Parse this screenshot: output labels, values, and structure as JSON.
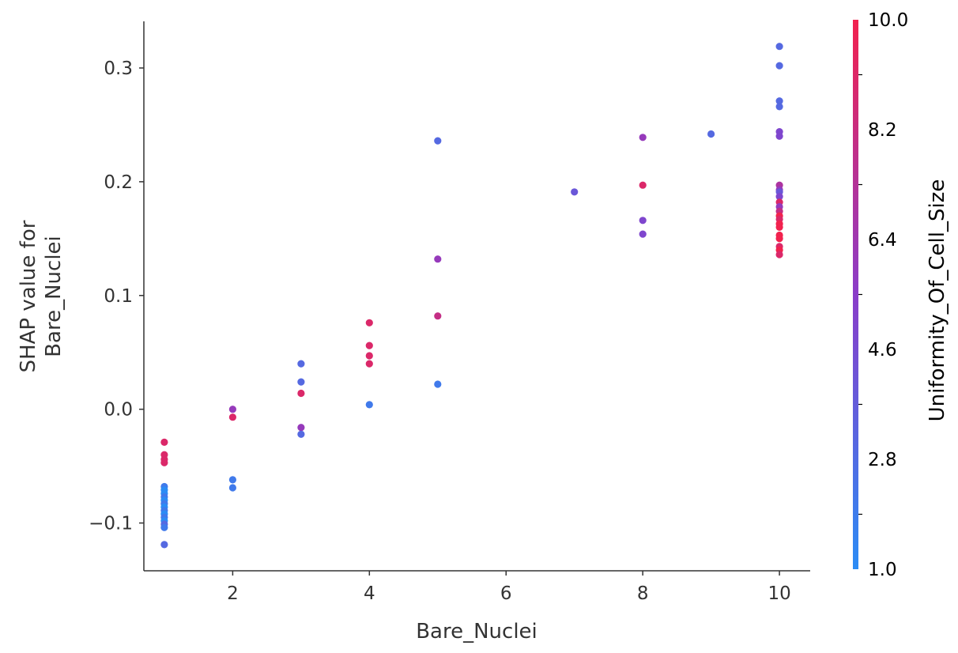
{
  "chart_data": {
    "type": "scatter",
    "xlabel": "Bare_Nuclei",
    "ylabel_lines": [
      "SHAP value for",
      "Bare_Nuclei"
    ],
    "xlim": [
      0.7,
      10.45
    ],
    "ylim": [
      -0.142,
      0.341
    ],
    "xticks": [
      2,
      4,
      6,
      8,
      10
    ],
    "xtick_labels": [
      "2",
      "4",
      "6",
      "8",
      "10"
    ],
    "yticks": [
      -0.1,
      0.0,
      0.1,
      0.2,
      0.3
    ],
    "ytick_labels": [
      "−0.1",
      "0.0",
      "0.1",
      "0.2",
      "0.3"
    ],
    "colorbar": {
      "label": "Uniformity_Of_Cell_Size",
      "min": 1.0,
      "max": 10.0,
      "ticks": [
        1.0,
        2.8,
        4.6,
        6.4,
        8.2,
        10.0
      ],
      "tick_labels": [
        "1.0",
        "2.8",
        "4.6",
        "6.4",
        "8.2",
        "10.0"
      ],
      "color_low": "#2b8cf5",
      "color_mid": "#8a3dc9",
      "color_high": "#f2224e"
    },
    "points": [
      {
        "x": 1,
        "y": -0.029,
        "c": 9
      },
      {
        "x": 1,
        "y": -0.04,
        "c": 9
      },
      {
        "x": 1,
        "y": -0.044,
        "c": 9
      },
      {
        "x": 1,
        "y": -0.047,
        "c": 9
      },
      {
        "x": 1,
        "y": -0.068,
        "c": 2
      },
      {
        "x": 1,
        "y": -0.071,
        "c": 1
      },
      {
        "x": 1,
        "y": -0.074,
        "c": 1
      },
      {
        "x": 1,
        "y": -0.077,
        "c": 2
      },
      {
        "x": 1,
        "y": -0.08,
        "c": 1
      },
      {
        "x": 1,
        "y": -0.083,
        "c": 2
      },
      {
        "x": 1,
        "y": -0.086,
        "c": 1
      },
      {
        "x": 1,
        "y": -0.089,
        "c": 2
      },
      {
        "x": 1,
        "y": -0.092,
        "c": 1
      },
      {
        "x": 1,
        "y": -0.095,
        "c": 2
      },
      {
        "x": 1,
        "y": -0.098,
        "c": 1
      },
      {
        "x": 1,
        "y": -0.101,
        "c": 3
      },
      {
        "x": 1,
        "y": -0.104,
        "c": 2
      },
      {
        "x": 1,
        "y": -0.119,
        "c": 3
      },
      {
        "x": 2,
        "y": 0.0,
        "c": 6
      },
      {
        "x": 2,
        "y": -0.007,
        "c": 9
      },
      {
        "x": 2,
        "y": -0.062,
        "c": 2
      },
      {
        "x": 2,
        "y": -0.069,
        "c": 2
      },
      {
        "x": 3,
        "y": 0.04,
        "c": 3
      },
      {
        "x": 3,
        "y": 0.024,
        "c": 3
      },
      {
        "x": 3,
        "y": 0.014,
        "c": 9
      },
      {
        "x": 3,
        "y": -0.016,
        "c": 6
      },
      {
        "x": 3,
        "y": -0.022,
        "c": 3
      },
      {
        "x": 4,
        "y": 0.076,
        "c": 9
      },
      {
        "x": 4,
        "y": 0.056,
        "c": 9
      },
      {
        "x": 4,
        "y": 0.047,
        "c": 9
      },
      {
        "x": 4,
        "y": 0.04,
        "c": 9
      },
      {
        "x": 4,
        "y": 0.004,
        "c": 2
      },
      {
        "x": 5,
        "y": 0.236,
        "c": 3
      },
      {
        "x": 5,
        "y": 0.132,
        "c": 6
      },
      {
        "x": 5,
        "y": 0.082,
        "c": 8
      },
      {
        "x": 5,
        "y": 0.022,
        "c": 2
      },
      {
        "x": 7,
        "y": 0.191,
        "c": 4
      },
      {
        "x": 8,
        "y": 0.239,
        "c": 6
      },
      {
        "x": 8,
        "y": 0.197,
        "c": 9
      },
      {
        "x": 8,
        "y": 0.166,
        "c": 5
      },
      {
        "x": 8,
        "y": 0.154,
        "c": 5
      },
      {
        "x": 9,
        "y": 0.242,
        "c": 3
      },
      {
        "x": 10,
        "y": 0.319,
        "c": 3
      },
      {
        "x": 10,
        "y": 0.302,
        "c": 3
      },
      {
        "x": 10,
        "y": 0.271,
        "c": 3
      },
      {
        "x": 10,
        "y": 0.266,
        "c": 3
      },
      {
        "x": 10,
        "y": 0.244,
        "c": 5
      },
      {
        "x": 10,
        "y": 0.24,
        "c": 5
      },
      {
        "x": 10,
        "y": 0.197,
        "c": 7
      },
      {
        "x": 10,
        "y": 0.193,
        "c": 6
      },
      {
        "x": 10,
        "y": 0.191,
        "c": 4
      },
      {
        "x": 10,
        "y": 0.187,
        "c": 5
      },
      {
        "x": 10,
        "y": 0.182,
        "c": 9
      },
      {
        "x": 10,
        "y": 0.178,
        "c": 6
      },
      {
        "x": 10,
        "y": 0.174,
        "c": 8
      },
      {
        "x": 10,
        "y": 0.17,
        "c": 10
      },
      {
        "x": 10,
        "y": 0.167,
        "c": 9
      },
      {
        "x": 10,
        "y": 0.163,
        "c": 10
      },
      {
        "x": 10,
        "y": 0.16,
        "c": 10
      },
      {
        "x": 10,
        "y": 0.153,
        "c": 10
      },
      {
        "x": 10,
        "y": 0.15,
        "c": 10
      },
      {
        "x": 10,
        "y": 0.143,
        "c": 9
      },
      {
        "x": 10,
        "y": 0.14,
        "c": 10
      },
      {
        "x": 10,
        "y": 0.136,
        "c": 9
      }
    ]
  }
}
